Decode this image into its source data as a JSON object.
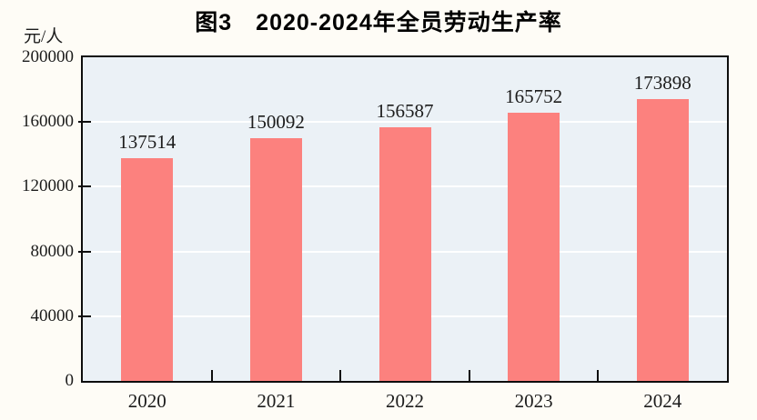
{
  "chart_data": {
    "type": "bar",
    "title": "图3　2020-2024年全员劳动生产率",
    "unit_label": "元/人",
    "categories": [
      "2020",
      "2021",
      "2022",
      "2023",
      "2024"
    ],
    "values": [
      137514,
      150092,
      156587,
      165752,
      173898
    ],
    "value_labels": [
      "137514",
      "150092",
      "156587",
      "165752",
      "173898"
    ],
    "xlabel": "",
    "ylabel": "元/人",
    "ylim": [
      0,
      200000
    ],
    "y_ticks": [
      0,
      40000,
      80000,
      120000,
      160000,
      200000
    ],
    "y_tick_labels": [
      "0",
      "40000",
      "80000",
      "120000",
      "160000",
      "200000"
    ],
    "grid": "horizontal white gridlines at each y tick",
    "legend": "none",
    "colors": {
      "bar": "#fc817e",
      "plot_background": "#ebf1f6",
      "gridline": "#ffffff",
      "axis": "#0d0d0d",
      "text": "#1c1c1c"
    }
  }
}
